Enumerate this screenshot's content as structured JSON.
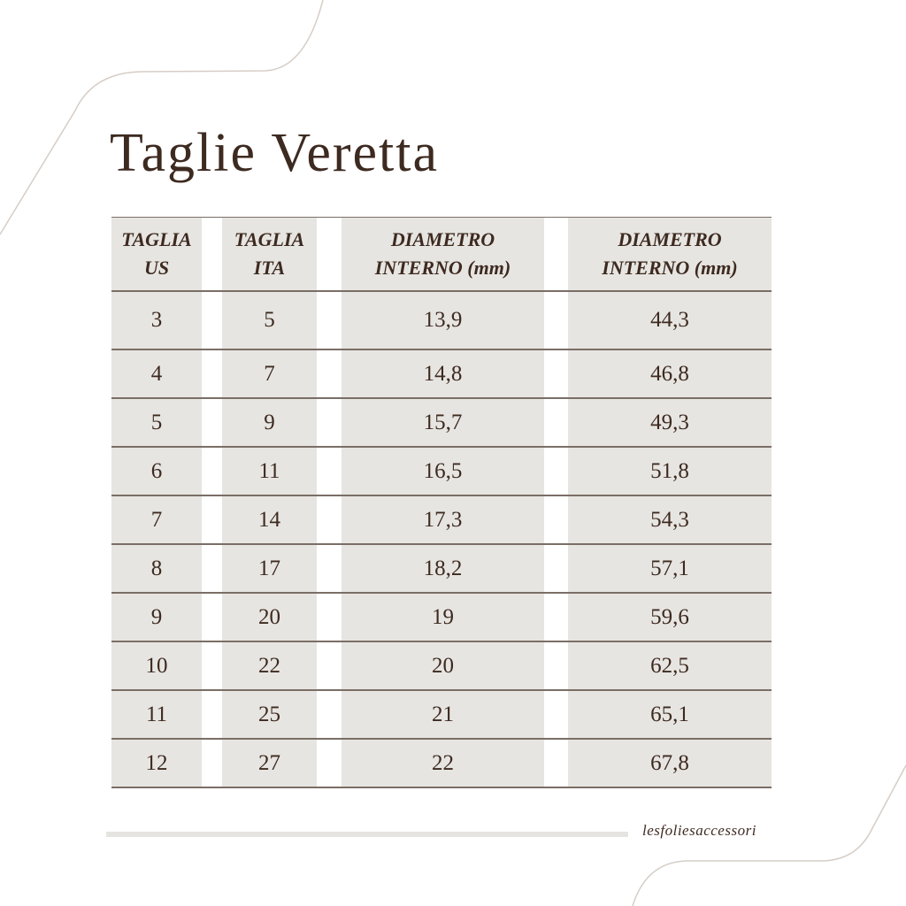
{
  "title": "Taglie Veretta",
  "table": {
    "headers": [
      [
        "TAGLIA",
        "US"
      ],
      [
        "TAGLIA",
        "ITA"
      ],
      [
        "DIAMETRO",
        "INTERNO (mm)"
      ],
      [
        "DIAMETRO",
        "INTERNO (mm)"
      ]
    ],
    "rows": [
      [
        "3",
        "5",
        "13,9",
        "44,3"
      ],
      [
        "4",
        "7",
        "14,8",
        "46,8"
      ],
      [
        "5",
        "9",
        "15,7",
        "49,3"
      ],
      [
        "6",
        "11",
        "16,5",
        "51,8"
      ],
      [
        "7",
        "14",
        "17,3",
        "54,3"
      ],
      [
        "8",
        "17",
        "18,2",
        "57,1"
      ],
      [
        "9",
        "20",
        "19",
        "59,6"
      ],
      [
        "10",
        "22",
        "20",
        "62,5"
      ],
      [
        "11",
        "25",
        "21",
        "65,1"
      ],
      [
        "12",
        "27",
        "22",
        "67,8"
      ]
    ]
  },
  "footer": {
    "brand": "lesfoliesaccessori"
  },
  "colors": {
    "text": "#3d2a20",
    "cell": "#e7e5e1",
    "rule": "#7a6e66",
    "curve": "#d6cdc6"
  }
}
